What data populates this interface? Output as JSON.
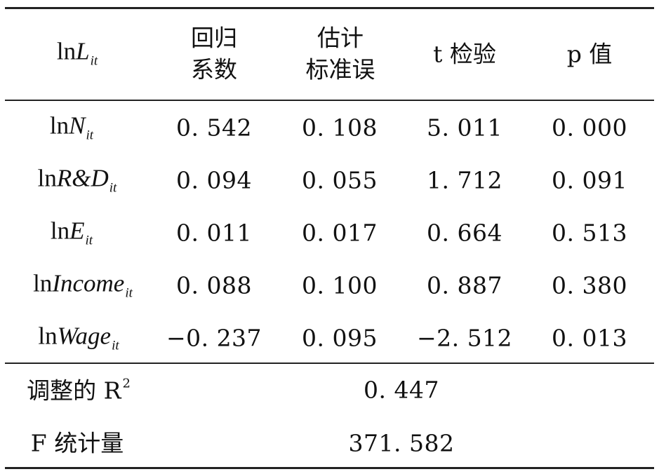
{
  "header": {
    "dependent": {
      "prefix": "ln",
      "var": "L",
      "sub": "it"
    },
    "coef_line1": "回归",
    "coef_line2": "系数",
    "se_line1": "估计",
    "se_line2": "标准误",
    "t_label": "t 检验",
    "p_label": "p 值"
  },
  "rows": [
    {
      "prefix": "ln",
      "var": "N",
      "sub": "it",
      "coef": "0. 542",
      "se": "0. 108",
      "t": "5. 011",
      "p": "0. 000"
    },
    {
      "prefix": "ln",
      "var": "R&D",
      "sub": "it",
      "coef": "0. 094",
      "se": "0. 055",
      "t": "1. 712",
      "p": "0. 091"
    },
    {
      "prefix": "ln",
      "var": "E",
      "sub": "it",
      "coef": "0. 011",
      "se": "0. 017",
      "t": "0. 664",
      "p": "0. 513"
    },
    {
      "prefix": "ln",
      "var": "Income",
      "sub": "it",
      "coef": "0. 088",
      "se": "0. 100",
      "t": "0. 887",
      "p": "0. 380"
    },
    {
      "prefix": "ln",
      "var": "Wage",
      "sub": "it",
      "coef": "−0. 237",
      "se": "0. 095",
      "t": "−2. 512",
      "p": "0. 013"
    }
  ],
  "footer": {
    "r2_label": "调整的 R",
    "r2_sup": "2",
    "r2_value": "0. 447",
    "f_label": "F 统计量",
    "f_value": "371. 582"
  }
}
